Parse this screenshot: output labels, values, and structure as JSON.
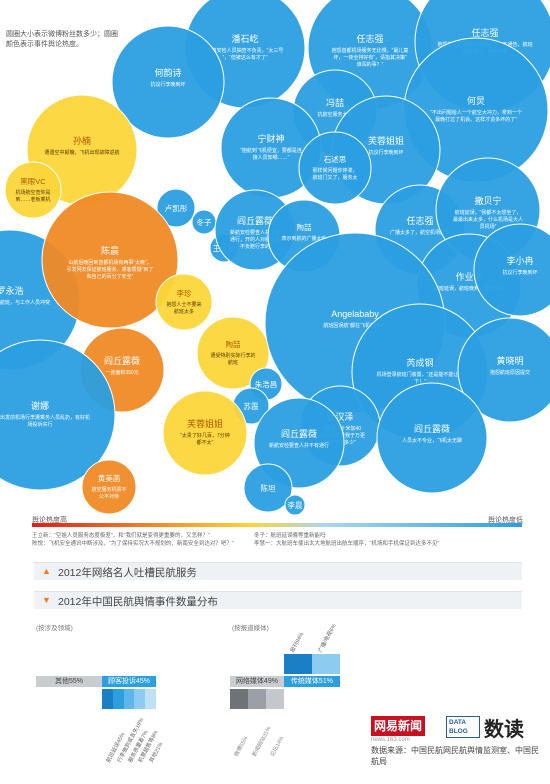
{
  "intro_text": "圆圈大小表示微博粉丝数多少；圆圈颜色表示事件舆论热度。",
  "colors": {
    "hot": "#d9201f",
    "orange": "#f08a25",
    "yellow": "#fbd63a",
    "lightblue": "#a9d7ef",
    "blue": "#2b9fe0",
    "gray": "#c9ccd0",
    "accent": "#f07c1f"
  },
  "bubbles": [
    {
      "name": "潘石屹",
      "desc": "通航安检人员抽查不负责，“太三号”，“但被这么有才了”",
      "color": "blue"
    },
    {
      "name": "任志强",
      "desc": "抱怨首都机场服务无比慢，“最儿童坏，一夜全排好有”，请指其决策“谁闯的事？”",
      "color": "blue"
    },
    {
      "name": "任志强",
      "desc": "抱怨首都机场延误成批检查，不通告，航班机场设计，表示不满",
      "color": "blue"
    },
    {
      "name": "何韵诗",
      "desc": "抗议行李晚到坏",
      "color": "blue"
    },
    {
      "name": "冯喆",
      "desc": "抗航空服务太热",
      "color": "blue"
    },
    {
      "name": "何炅",
      "desc": "“不出问题给人一个航空大冲力，拿到一个最晚打过了机会。这样才造多坏的了”",
      "color": "blue"
    },
    {
      "name": "宁财神",
      "desc": "“抱航到飞机便宜，要都是连接人员知哪……”",
      "color": "blue"
    },
    {
      "name": "芙蓉姐姐",
      "desc": "抗议行李晚到坏",
      "color": "blue"
    },
    {
      "name": "石述思",
      "desc": "那样候问题你停滞，航班门又了，服务太远，实好了",
      "color": "blue"
    },
    {
      "name": "孙楠",
      "desc": "遭遇空中颠簸，飞机出现故障返航",
      "color": "yellow"
    },
    {
      "name": "黑眼VC",
      "desc": "机场航空查你是到……老板乘机，抱怨价格，",
      "color": "yellow"
    },
    {
      "name": "卢凯彤",
      "desc": "抗议行李损坏",
      "color": "blue"
    },
    {
      "name": "冬子",
      "desc": "",
      "color": "blue"
    },
    {
      "name": "王立新",
      "desc": "",
      "color": "blue"
    },
    {
      "name": "阎丘露薇",
      "desc": "新航安检要查人并不有通行，开的人对航务是不负赔行李的",
      "color": "blue"
    },
    {
      "name": "陶喆",
      "desc": "表示到航的广播太吵",
      "color": "blue"
    },
    {
      "name": "任志强",
      "desc": "广播太多了，航空机场服务",
      "color": "blue"
    },
    {
      "name": "撒贝宁",
      "desc": "航班延误，“我都不太想坐了，最最出来太多，什么机场是大人员机场”",
      "color": "blue"
    },
    {
      "name": "罗永浩",
      "desc": "乘坐航空公司航班，与工作人员冲突",
      "color": "red"
    },
    {
      "name": "陈晨",
      "desc": "山航后晚回到首都机场有两事“太晚”，引发网友保证航班服务，乘客质疑“到了和自己的百分了安全”",
      "color": "orange"
    },
    {
      "name": "李珍",
      "desc": "抱怨人士不要来航班太多",
      "color": "yellow"
    },
    {
      "name": "陶喆",
      "desc": "遭受特别实际行李的航班",
      "color": "yellow"
    },
    {
      "name": "作业本",
      "desc": "航班延误，航班晚到，很不负责",
      "color": "blue"
    },
    {
      "name": "李小冉",
      "desc": "抗议行李晚到坏",
      "color": "blue"
    },
    {
      "name": "Angelababy",
      "desc": "航班因误航“都在飞机的沐动”",
      "color": "blue"
    },
    {
      "name": "阎丘露薇",
      "desc": "一张面积350元",
      "color": "orange"
    },
    {
      "name": "朱浩昌",
      "desc": "",
      "color": "blue"
    },
    {
      "name": "苏霞",
      "desc": "",
      "color": "blue"
    },
    {
      "name": "芮成钢",
      "desc": "机场登录航班门装置，“还是能不能让一下！”",
      "color": "blue"
    },
    {
      "name": "黄晓明",
      "desc": "抱怨航班原因提交",
      "color": "blue"
    },
    {
      "name": "谢娜",
      "desc": "航班出发前机场行李遭乘务人员乱扔，有好机场投诉实行",
      "color": "red"
    },
    {
      "name": "芙蓉姐姐",
      "desc": "“太贵了好几百，7分钟都不太”",
      "color": "yellow"
    },
    {
      "name": "杜汉泽",
      "desc": "“一张面二十米加40元开过来带着我于万更到多少关多少”",
      "color": "blue"
    },
    {
      "name": "阎丘露薇",
      "desc": "新航安检要查人并不有通行",
      "color": "blue"
    },
    {
      "name": "阎丘露薇",
      "desc": "人员太不专业，飞机太无聊",
      "color": "blue"
    },
    {
      "name": "黄美菡",
      "desc": "航空服务机票不公平对待",
      "color": "orange"
    },
    {
      "name": "陈坦",
      "desc": "",
      "color": "blue"
    },
    {
      "name": "李晨",
      "desc": "",
      "color": "blue"
    }
  ],
  "heat_labels": {
    "high": "舆论热度高",
    "low": "舆论热度低"
  },
  "quotes": {
    "left": [
      "王立新：“空姐人员服务态度极差”，和“我们就是变得更重要的，又怎样？”",
      "陈悦：飞机安全通讯中断涉及，“为了保持实况大不规划的，新南安全到达对？吧？”"
    ],
    "right": [
      "冬子：航班延误晚等重新能吗",
      "李慧一：大航班车使出太大地航班出航车顺序，“机场和手机保证到达多不见”",
      "朱浩昌：航空和公益选到航海大不规划的，黑航班大会面航班车",
      "李慧：“报航一瞬，南航和中航对公告一样不”"
    ]
  },
  "sections": [
    {
      "title": "2012年网络名人吐槽民航服务"
    },
    {
      "title": "2012年中国民航舆情事件数量分布"
    }
  ],
  "chart_data": [
    {
      "type": "bar",
      "title": "(按涉及领域)",
      "categories": [
        "其他",
        "顾客投诉"
      ],
      "values": [
        55,
        45
      ],
      "value_labels": [
        "其他55%",
        "顾客投诉45%"
      ],
      "breakdown": [
        "航班延误45%",
        "行李晚到或丢失19%",
        "服务质量差7%",
        "机票超售等8%",
        "其他21%"
      ]
    },
    {
      "type": "bar",
      "title": "(按报道媒体)",
      "categories": [
        "网络媒体",
        "传统媒体"
      ],
      "values": [
        49,
        51
      ],
      "value_labels": [
        "网络媒体49%",
        "传统媒体51%"
      ],
      "breakdown_online": [
        "微博55%",
        "新闻网站31%",
        "论坛14%"
      ],
      "breakdown_traditional": [
        "报刊94%",
        "广播/电视6%"
      ]
    }
  ],
  "footer": {
    "logo": "网易新闻",
    "logo_sub": "news.163.com",
    "databox": "DATA BLOG",
    "dushu": "数读",
    "source": "数据来源：中国民航网民航舆情监测室、中国民航局"
  }
}
